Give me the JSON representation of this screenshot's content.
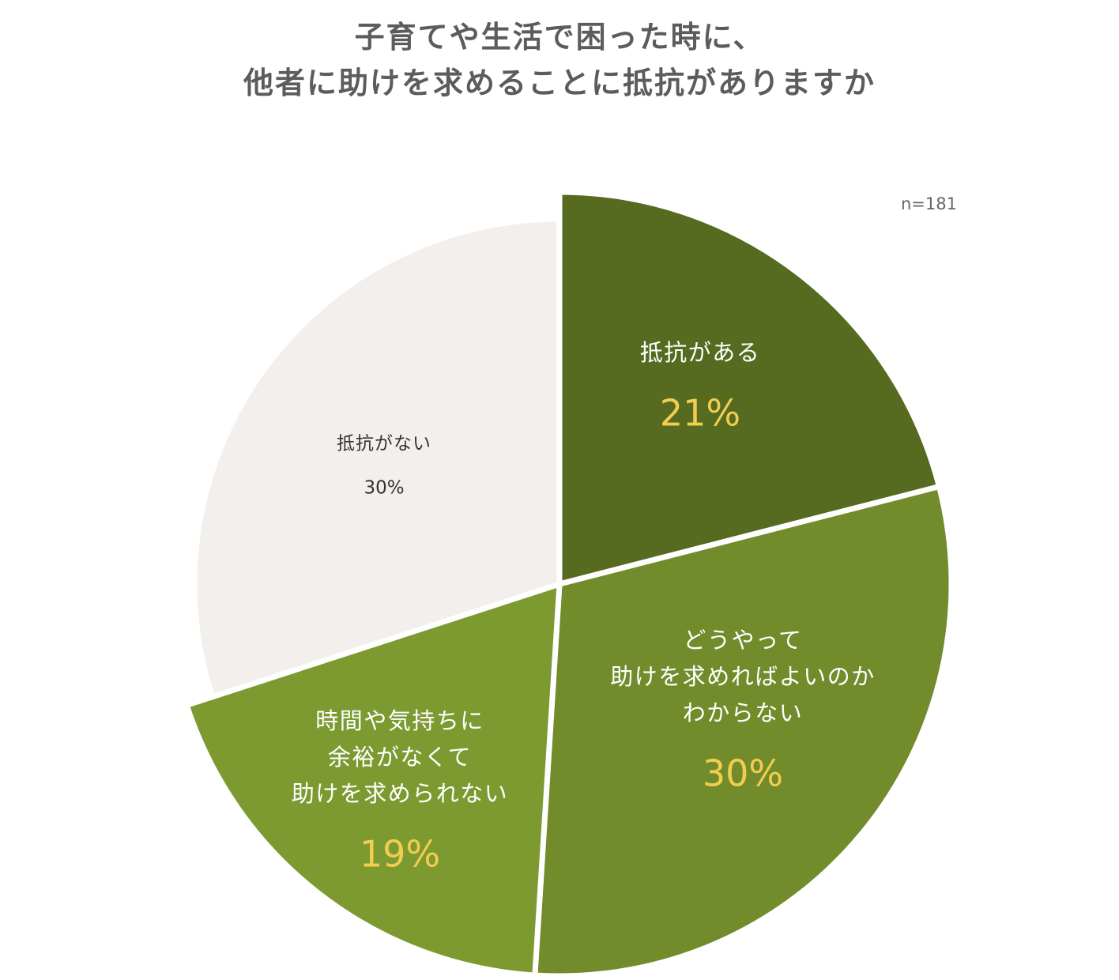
{
  "title_lines": [
    "子育てや生活で困った時に、",
    "他者に助けを求めることに抵抗がありますか"
  ],
  "sample_size": "n=181",
  "chart_data": {
    "type": "pie",
    "title": "子育てや生活で困った時に、他者に助けを求めることに抵抗がありますか",
    "start_angle": "12 o'clock",
    "direction": "clockwise",
    "slices": [
      {
        "label_lines": [
          "抵抗がある"
        ],
        "value": 21,
        "value_label": "21%",
        "color": "#566b1f",
        "text_color": "#ffffff",
        "value_color": "#f2cd4f"
      },
      {
        "label_lines": [
          "どうやって",
          "助けを求めればよいのか",
          "わからない"
        ],
        "value": 30,
        "value_label": "30%",
        "color": "#728b2b",
        "text_color": "#ffffff",
        "value_color": "#f2cd4f"
      },
      {
        "label_lines": [
          "時間や気持ちに",
          "余裕がなくて",
          "助けを求められない"
        ],
        "value": 19,
        "value_label": "19%",
        "color": "#7c9a30",
        "text_color": "#ffffff",
        "value_color": "#f2cd4f"
      },
      {
        "label_lines": [
          "抵抗がない"
        ],
        "value": 30,
        "value_label": "30%",
        "color": "#f2efec",
        "text_color": "#333333",
        "value_color": "#333333"
      }
    ]
  }
}
